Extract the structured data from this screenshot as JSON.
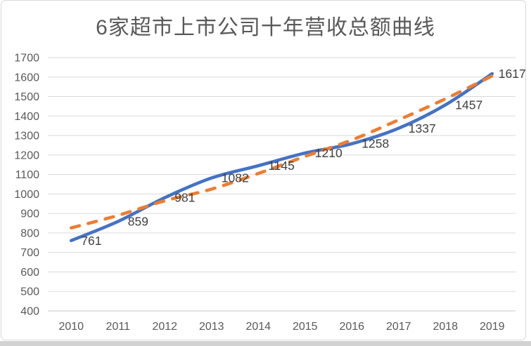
{
  "chart_data": {
    "type": "line",
    "title": "6家超市上市公司十年营收总额曲线",
    "xlabel": "",
    "ylabel": "",
    "categories": [
      "2010",
      "2011",
      "2012",
      "2013",
      "2014",
      "2015",
      "2016",
      "2017",
      "2018",
      "2019"
    ],
    "series": [
      {
        "name": "revenue-total",
        "color": "#4472C4",
        "dashed": false,
        "smooth": true,
        "show_labels": true,
        "values": [
          761,
          859,
          981,
          1082,
          1145,
          1210,
          1258,
          1337,
          1457,
          1617
        ]
      },
      {
        "name": "trendline",
        "color": "#ED7D31",
        "dashed": true,
        "smooth": true,
        "show_labels": false,
        "values": [
          826,
          890,
          965,
          1025,
          1105,
          1193,
          1277,
          1380,
          1488,
          1606
        ]
      }
    ],
    "ylim": [
      400,
      1700
    ],
    "ytick_step": 100,
    "yticks": [
      400,
      500,
      600,
      700,
      800,
      900,
      1000,
      1100,
      1200,
      1300,
      1400,
      1500,
      1600,
      1700
    ],
    "grid": true,
    "legend": "none",
    "colors": {
      "gridline": "#D9D9D9",
      "axis_line": "#C9C9C9",
      "tick_label": "#595959",
      "data_label": "#404040",
      "title": "#595959",
      "frame_border": "#D9D9D9",
      "background": "#FFFFFF"
    }
  }
}
